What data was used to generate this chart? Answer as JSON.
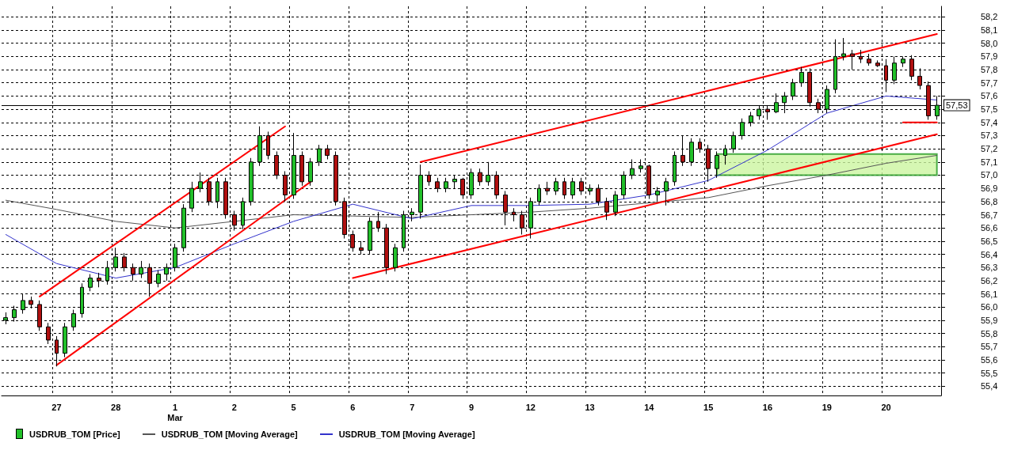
{
  "chart_data": {
    "type": "candlestick",
    "categories": [
      null,
      null,
      null,
      null,
      null,
      null,
      "27",
      null,
      null,
      null,
      null,
      null,
      null,
      "28",
      null,
      null,
      null,
      null,
      null,
      null,
      "1\nMar",
      null,
      null,
      null,
      null,
      null,
      null,
      "2",
      null,
      null,
      null,
      null,
      null,
      null,
      "5",
      null,
      null,
      null,
      null,
      null,
      null,
      "6",
      null,
      null,
      null,
      null,
      null,
      null,
      "7",
      null,
      null,
      null,
      null,
      null,
      null,
      "9",
      null,
      null,
      null,
      null,
      null,
      null,
      "12",
      null,
      null,
      null,
      null,
      null,
      null,
      "13",
      null,
      null,
      null,
      null,
      null,
      null,
      "14",
      null,
      null,
      null,
      null,
      null,
      null,
      "15",
      null,
      null,
      null,
      null,
      null,
      null,
      "16",
      null,
      null,
      null,
      null,
      null,
      null,
      "19",
      null,
      null,
      null,
      null,
      null,
      null,
      "20",
      null,
      null,
      null,
      null,
      null,
      null
    ],
    "series": [
      {
        "name": "USDRUB_TOM [Price]",
        "color": "#22c02a",
        "colors": [
          "#22c02a",
          "#22c02a",
          "#22c02a",
          "#b01010",
          "#b01010",
          "#b01010",
          "#b01010",
          "#22c02a",
          "#22c02a",
          "#22c02a",
          "#22c02a",
          "#b01010",
          "#22c02a",
          "#22c02a",
          "#b01010",
          "#b01010",
          "#22c02a",
          "#b01010",
          "#22c02a",
          "#22c02a",
          "#22c02a",
          "#22c02a",
          "#22c02a",
          "#22c02a",
          "#b01010",
          "#22c02a",
          "#b01010",
          "#b01010",
          "#22c02a",
          "#22c02a",
          "#22c02a",
          "#b01010",
          "#b01010",
          "#b01010",
          "#22c02a",
          "#b01010",
          "#22c02a",
          "#22c02a",
          "#b01010",
          "#b01010",
          "#b01010",
          "#b01010",
          "#b01010",
          "#22c02a",
          "#b01010",
          "#b01010",
          "#22c02a",
          "#22c02a",
          "#22c02a",
          "#22c02a",
          "#b01010",
          "#b01010",
          "#22c02a",
          "#22c02a",
          "#b01010",
          "#22c02a",
          "#b01010",
          "#22c02a",
          "#b01010",
          "#b01010",
          "#b01010",
          "#b01010",
          "#22c02a",
          "#22c02a",
          "#b01010",
          "#22c02a",
          "#b01010",
          "#22c02a",
          "#b01010",
          "#22c02a",
          "#b01010",
          "#b01010",
          "#22c02a",
          "#22c02a",
          "#22c02a",
          "#22c02a",
          "#b01010",
          "#22c02a",
          "#22c02a",
          "#22c02a",
          "#b01010",
          "#22c02a",
          "#b01010",
          "#b01010",
          "#22c02a",
          "#22c02a",
          "#22c02a",
          "#22c02a",
          "#22c02a",
          "#22c02a",
          "#b01010",
          "#22c02a",
          "#22c02a",
          "#22c02a",
          "#22c02a",
          "#b01010",
          "#b01010",
          "#22c02a",
          "#22c02a",
          "#22c02a",
          "#b01010",
          "#b01010",
          "#b01010",
          "#b01010",
          "#b01010",
          "#22c02a",
          "#22c02a",
          "#b01010",
          "#b01010",
          "#b01010",
          "#22c02a"
        ],
        "ohlc": [
          [
            55.9,
            55.96,
            55.87,
            55.92
          ],
          [
            55.92,
            56.01,
            55.89,
            55.98
          ],
          [
            55.98,
            56.1,
            55.95,
            56.05
          ],
          [
            56.05,
            56.08,
            55.99,
            56.02
          ],
          [
            56.02,
            56.05,
            55.82,
            55.85
          ],
          [
            55.85,
            55.88,
            55.72,
            55.75
          ],
          [
            55.75,
            55.78,
            55.55,
            55.65
          ],
          [
            55.65,
            55.88,
            55.62,
            55.85
          ],
          [
            55.85,
            55.98,
            55.82,
            55.95
          ],
          [
            55.95,
            56.18,
            55.92,
            56.15
          ],
          [
            56.15,
            56.25,
            56.12,
            56.22
          ],
          [
            56.22,
            56.26,
            56.15,
            56.2
          ],
          [
            56.2,
            56.35,
            56.17,
            56.3
          ],
          [
            56.3,
            56.45,
            56.27,
            56.38
          ],
          [
            56.38,
            56.41,
            56.27,
            56.3
          ],
          [
            56.3,
            56.33,
            56.2,
            56.25
          ],
          [
            56.25,
            56.35,
            56.22,
            56.3
          ],
          [
            56.3,
            56.33,
            56.08,
            56.18
          ],
          [
            56.18,
            56.28,
            56.15,
            56.25
          ],
          [
            56.25,
            56.33,
            56.2,
            56.3
          ],
          [
            56.3,
            56.48,
            56.27,
            56.45
          ],
          [
            56.45,
            56.78,
            56.42,
            56.75
          ],
          [
            56.75,
            56.95,
            56.72,
            56.9
          ],
          [
            56.9,
            57.02,
            56.87,
            56.95
          ],
          [
            56.95,
            56.98,
            56.77,
            56.8
          ],
          [
            56.8,
            56.98,
            56.75,
            56.95
          ],
          [
            56.95,
            56.98,
            56.67,
            56.7
          ],
          [
            56.7,
            56.73,
            56.58,
            56.62
          ],
          [
            56.62,
            56.83,
            56.59,
            56.8
          ],
          [
            56.8,
            57.13,
            56.77,
            57.1
          ],
          [
            57.1,
            57.37,
            57.07,
            57.3
          ],
          [
            57.3,
            57.33,
            57.12,
            57.15
          ],
          [
            57.15,
            57.18,
            56.97,
            57.0
          ],
          [
            57.0,
            57.03,
            56.8,
            56.85
          ],
          [
            56.85,
            57.32,
            56.82,
            57.15
          ],
          [
            57.15,
            57.18,
            56.92,
            56.95
          ],
          [
            56.95,
            57.13,
            56.92,
            57.1
          ],
          [
            57.1,
            57.23,
            57.07,
            57.2
          ],
          [
            57.2,
            57.23,
            57.12,
            57.15
          ],
          [
            57.15,
            57.18,
            56.77,
            56.8
          ],
          [
            56.8,
            56.83,
            56.52,
            56.55
          ],
          [
            56.55,
            56.58,
            56.42,
            56.45
          ],
          [
            56.45,
            56.5,
            56.4,
            56.43
          ],
          [
            56.43,
            56.68,
            56.4,
            56.65
          ],
          [
            56.65,
            56.72,
            56.57,
            56.6
          ],
          [
            56.6,
            56.63,
            56.25,
            56.3
          ],
          [
            56.3,
            56.48,
            56.27,
            56.45
          ],
          [
            56.45,
            56.73,
            56.42,
            56.7
          ],
          [
            56.7,
            56.75,
            56.65,
            56.72
          ],
          [
            56.72,
            57.08,
            56.67,
            57.0
          ],
          [
            57.0,
            57.03,
            56.92,
            56.95
          ],
          [
            56.95,
            56.98,
            56.87,
            56.9
          ],
          [
            56.9,
            56.98,
            56.87,
            56.95
          ],
          [
            56.95,
            57.0,
            56.9,
            56.97
          ],
          [
            56.97,
            56.98,
            56.82,
            56.85
          ],
          [
            56.85,
            57.05,
            56.82,
            57.02
          ],
          [
            57.02,
            57.05,
            56.92,
            56.95
          ],
          [
            56.95,
            57.1,
            56.92,
            57.0
          ],
          [
            57.0,
            57.03,
            56.82,
            56.85
          ],
          [
            56.85,
            56.88,
            56.62,
            56.72
          ],
          [
            56.72,
            56.75,
            56.65,
            56.7
          ],
          [
            56.7,
            56.73,
            56.55,
            56.6
          ],
          [
            56.6,
            56.83,
            56.52,
            56.8
          ],
          [
            56.8,
            56.93,
            56.77,
            56.9
          ],
          [
            56.9,
            56.95,
            56.85,
            56.88
          ],
          [
            56.88,
            56.98,
            56.85,
            56.95
          ],
          [
            56.95,
            56.98,
            56.82,
            56.85
          ],
          [
            56.85,
            56.98,
            56.82,
            56.95
          ],
          [
            56.95,
            56.98,
            56.85,
            56.88
          ],
          [
            56.88,
            56.93,
            56.85,
            56.9
          ],
          [
            56.9,
            56.93,
            56.77,
            56.8
          ],
          [
            56.8,
            56.83,
            56.66,
            56.72
          ],
          [
            56.72,
            56.88,
            56.69,
            56.85
          ],
          [
            56.85,
            57.03,
            56.82,
            57.0
          ],
          [
            57.0,
            57.12,
            56.97,
            57.05
          ],
          [
            57.05,
            57.12,
            57.02,
            57.07
          ],
          [
            57.07,
            57.08,
            56.82,
            56.85
          ],
          [
            56.85,
            56.91,
            56.8,
            56.88
          ],
          [
            56.88,
            56.98,
            56.77,
            56.95
          ],
          [
            56.95,
            57.18,
            56.92,
            57.15
          ],
          [
            57.15,
            57.3,
            57.07,
            57.1
          ],
          [
            57.1,
            57.28,
            57.07,
            57.25
          ],
          [
            57.25,
            57.28,
            57.17,
            57.2
          ],
          [
            57.2,
            57.23,
            56.95,
            57.05
          ],
          [
            57.05,
            57.18,
            56.98,
            57.15
          ],
          [
            57.15,
            57.23,
            57.08,
            57.2
          ],
          [
            57.2,
            57.33,
            57.17,
            57.3
          ],
          [
            57.3,
            57.43,
            57.27,
            57.4
          ],
          [
            57.4,
            57.48,
            57.37,
            57.45
          ],
          [
            57.45,
            57.53,
            57.42,
            57.5
          ],
          [
            57.5,
            57.53,
            57.42,
            57.48
          ],
          [
            57.48,
            57.62,
            57.47,
            57.55
          ],
          [
            57.55,
            57.63,
            57.47,
            57.6
          ],
          [
            57.6,
            57.73,
            57.57,
            57.7
          ],
          [
            57.7,
            57.82,
            57.67,
            57.78
          ],
          [
            57.78,
            57.81,
            57.52,
            57.55
          ],
          [
            57.55,
            57.58,
            57.47,
            57.5
          ],
          [
            57.5,
            57.68,
            57.47,
            57.65
          ],
          [
            57.65,
            58.03,
            57.62,
            57.9
          ],
          [
            57.9,
            58.04,
            57.87,
            57.92
          ],
          [
            57.92,
            57.95,
            57.8,
            57.9
          ],
          [
            57.9,
            57.95,
            57.85,
            57.88
          ],
          [
            57.88,
            57.92,
            57.83,
            57.85
          ],
          [
            57.85,
            57.87,
            57.82,
            57.83
          ],
          [
            57.83,
            57.88,
            57.63,
            57.72
          ],
          [
            57.72,
            57.9,
            57.69,
            57.85
          ],
          [
            57.85,
            57.9,
            57.82,
            57.88
          ],
          [
            57.88,
            57.91,
            57.72,
            57.75
          ],
          [
            57.75,
            57.81,
            57.65,
            57.68
          ],
          [
            57.68,
            57.71,
            57.42,
            57.45
          ],
          [
            57.45,
            57.6,
            57.42,
            57.53
          ]
        ]
      },
      {
        "name": "USDRUB_TOM [Moving Average]",
        "type": "line",
        "color": "#555555",
        "values": [
          56.81,
          null,
          null,
          null,
          null,
          null,
          56.74,
          null,
          null,
          null,
          null,
          null,
          null,
          56.65,
          null,
          null,
          null,
          null,
          null,
          null,
          56.6,
          null,
          null,
          null,
          null,
          null,
          null,
          56.65,
          null,
          null,
          null,
          null,
          null,
          null,
          56.7,
          null,
          null,
          null,
          null,
          null,
          null,
          56.69,
          null,
          null,
          null,
          null,
          null,
          null,
          56.68,
          null,
          null,
          null,
          null,
          null,
          null,
          56.7,
          null,
          null,
          null,
          null,
          null,
          null,
          56.72,
          null,
          null,
          null,
          null,
          null,
          null,
          56.75,
          null,
          null,
          null,
          null,
          null,
          null,
          56.79,
          null,
          null,
          null,
          null,
          null,
          null,
          56.83,
          null,
          null,
          null,
          null,
          null,
          null,
          56.92,
          null,
          null,
          null,
          null,
          null,
          null,
          57.0,
          null,
          null,
          null,
          null,
          null,
          null,
          57.09,
          null,
          null,
          null,
          null,
          null,
          57.15
        ]
      },
      {
        "name": "USDRUB_TOM [Moving Average]",
        "type": "line",
        "color": "#3333cc",
        "values": [
          56.55,
          null,
          null,
          null,
          null,
          null,
          56.33,
          null,
          null,
          null,
          null,
          null,
          null,
          56.22,
          null,
          null,
          null,
          null,
          null,
          null,
          56.3,
          null,
          null,
          null,
          null,
          null,
          null,
          56.48,
          null,
          null,
          null,
          null,
          null,
          null,
          56.65,
          null,
          null,
          null,
          null,
          null,
          null,
          56.78,
          null,
          null,
          null,
          null,
          null,
          null,
          56.67,
          null,
          null,
          null,
          null,
          null,
          null,
          56.77,
          null,
          null,
          null,
          null,
          null,
          null,
          56.77,
          null,
          null,
          null,
          null,
          null,
          null,
          56.78,
          null,
          null,
          null,
          null,
          null,
          null,
          56.85,
          null,
          null,
          null,
          null,
          null,
          null,
          56.96,
          null,
          null,
          null,
          null,
          null,
          null,
          57.19,
          null,
          null,
          null,
          null,
          null,
          null,
          57.47,
          null,
          null,
          null,
          null,
          null,
          null,
          57.6,
          null,
          null,
          null,
          null,
          null,
          57.57
        ]
      },
      {
        "type": "line",
        "color": "#ff0000",
        "values": [
          null,
          null,
          null,
          null,
          56.08,
          null,
          null,
          null,
          null,
          null,
          null,
          null,
          null,
          null,
          null,
          null,
          null,
          null,
          null,
          null,
          null,
          null,
          null,
          null,
          null,
          null,
          null,
          null,
          null,
          null,
          null,
          null,
          null,
          57.37,
          null,
          null,
          null,
          null,
          null,
          null,
          null,
          null,
          null,
          null,
          null,
          null,
          null,
          null,
          null,
          null,
          null,
          null,
          null,
          null,
          null,
          null,
          null,
          null,
          null,
          null,
          null,
          null,
          null,
          null,
          null,
          null,
          null,
          null,
          null,
          null,
          null,
          null,
          null,
          null,
          null,
          null,
          null,
          null,
          null,
          null,
          null,
          null,
          null,
          null,
          null,
          null,
          null,
          null,
          null,
          null,
          null,
          null,
          null,
          null,
          null,
          null,
          null,
          null,
          null,
          null,
          null,
          null,
          null,
          null,
          null,
          null,
          null,
          null,
          null,
          null,
          null
        ]
      },
      {
        "type": "line",
        "color": "#ff0000",
        "values": [
          null,
          null,
          null,
          null,
          null,
          null,
          55.56,
          null,
          null,
          null,
          null,
          null,
          null,
          null,
          null,
          null,
          null,
          null,
          null,
          null,
          null,
          null,
          null,
          null,
          null,
          null,
          null,
          null,
          null,
          null,
          null,
          null,
          null,
          null,
          null,
          null,
          56.95,
          null,
          null,
          null,
          null,
          null,
          null,
          null,
          null,
          null,
          null,
          null,
          null,
          null,
          null,
          null,
          null,
          null,
          null,
          null,
          null,
          null,
          null,
          null,
          null,
          null,
          null,
          null,
          null,
          null,
          null,
          null,
          null,
          null,
          null,
          null,
          null,
          null,
          null,
          null,
          null,
          null,
          null,
          null,
          null,
          null,
          null,
          null,
          null,
          null,
          null,
          null,
          null,
          null,
          null,
          null,
          null,
          null,
          null,
          null,
          null,
          null,
          null,
          null,
          null,
          null,
          null,
          null,
          null,
          null,
          null,
          null,
          null,
          null,
          null
        ]
      },
      {
        "type": "line",
        "color": "#ff0000",
        "values": [
          null,
          null,
          null,
          null,
          null,
          null,
          null,
          null,
          null,
          null,
          null,
          null,
          null,
          null,
          null,
          null,
          null,
          null,
          null,
          null,
          null,
          null,
          null,
          null,
          null,
          null,
          null,
          null,
          null,
          null,
          null,
          null,
          null,
          null,
          null,
          null,
          null,
          null,
          null,
          null,
          null,
          null,
          null,
          null,
          null,
          null,
          null,
          null,
          null,
          57.1,
          null,
          null,
          null,
          null,
          null,
          null,
          null,
          null,
          null,
          null,
          null,
          null,
          null,
          null,
          null,
          null,
          null,
          null,
          null,
          null,
          null,
          null,
          null,
          null,
          null,
          null,
          null,
          null,
          null,
          null,
          null,
          null,
          null,
          null,
          null,
          null,
          null,
          null,
          null,
          null,
          null,
          null,
          null,
          null,
          null,
          null,
          null,
          null,
          null,
          null,
          null,
          null,
          null,
          null,
          null,
          null,
          null,
          null,
          null,
          null,
          58.07
        ]
      },
      {
        "type": "line",
        "color": "#ff0000",
        "values": [
          null,
          null,
          null,
          null,
          null,
          null,
          null,
          null,
          null,
          null,
          null,
          null,
          null,
          null,
          null,
          null,
          null,
          null,
          null,
          null,
          null,
          null,
          null,
          null,
          null,
          null,
          null,
          null,
          null,
          null,
          null,
          null,
          null,
          null,
          null,
          null,
          null,
          null,
          null,
          null,
          null,
          56.22,
          null,
          null,
          null,
          null,
          null,
          null,
          null,
          null,
          null,
          null,
          null,
          null,
          null,
          null,
          null,
          null,
          null,
          null,
          null,
          null,
          null,
          null,
          null,
          null,
          null,
          null,
          null,
          null,
          null,
          null,
          null,
          null,
          null,
          null,
          null,
          null,
          null,
          null,
          null,
          null,
          null,
          null,
          null,
          null,
          null,
          null,
          null,
          null,
          null,
          null,
          null,
          null,
          null,
          null,
          null,
          null,
          null,
          null,
          null,
          null,
          null,
          null,
          null,
          null,
          null,
          null,
          null,
          null,
          57.31
        ]
      },
      {
        "type": "line",
        "color": "#ff0000",
        "values": [
          null,
          null,
          null,
          null,
          null,
          null,
          null,
          null,
          null,
          null,
          null,
          null,
          null,
          null,
          null,
          null,
          null,
          null,
          null,
          null,
          null,
          null,
          null,
          null,
          null,
          null,
          null,
          null,
          null,
          null,
          null,
          null,
          null,
          null,
          null,
          null,
          null,
          null,
          null,
          null,
          null,
          null,
          null,
          null,
          null,
          null,
          null,
          null,
          null,
          null,
          null,
          null,
          null,
          null,
          null,
          null,
          null,
          null,
          null,
          null,
          null,
          null,
          null,
          null,
          null,
          null,
          null,
          null,
          null,
          null,
          null,
          null,
          null,
          null,
          null,
          null,
          null,
          null,
          null,
          null,
          null,
          null,
          null,
          null,
          null,
          null,
          null,
          null,
          null,
          null,
          null,
          null,
          null,
          null,
          null,
          null,
          null,
          null,
          null,
          null,
          null,
          null,
          null,
          null,
          null,
          null,
          57.4,
          null,
          null,
          null,
          57.4
        ]
      }
    ],
    "ylim": [
      55.33,
      58.28
    ],
    "yticks": [
      {
        "value": 55.4,
        "label": "55,4"
      },
      {
        "value": 55.5,
        "label": "55,5"
      },
      {
        "value": 55.6,
        "label": "55,6"
      },
      {
        "value": 55.7,
        "label": "55,7"
      },
      {
        "value": 55.8,
        "label": "55,8"
      },
      {
        "value": 55.9,
        "label": "55,9"
      },
      {
        "value": 56.0,
        "label": "56,0"
      },
      {
        "value": 56.1,
        "label": "56,1"
      },
      {
        "value": 56.2,
        "label": "56,2"
      },
      {
        "value": 56.3,
        "label": "56,3"
      },
      {
        "value": 56.4,
        "label": "56,4"
      },
      {
        "value": 56.5,
        "label": "56,5"
      },
      {
        "value": 56.6,
        "label": "56,6"
      },
      {
        "value": 56.7,
        "label": "56,7"
      },
      {
        "value": 56.8,
        "label": "56,8"
      },
      {
        "value": 56.9,
        "label": "56,9"
      },
      {
        "value": 57.0,
        "label": "57,0"
      },
      {
        "value": 57.1,
        "label": "57,1"
      },
      {
        "value": 57.2,
        "label": "57,2"
      },
      {
        "value": 57.3,
        "label": "57,3"
      },
      {
        "value": 57.4,
        "label": "57,4"
      },
      {
        "value": 57.5,
        "label": "57,5"
      },
      {
        "value": 57.6,
        "label": "57,6"
      },
      {
        "value": 57.7,
        "label": "57,7"
      },
      {
        "value": 57.8,
        "label": "57,8"
      },
      {
        "value": 57.9,
        "label": "57,9"
      },
      {
        "value": 58.0,
        "label": "58,0"
      },
      {
        "value": 58.1,
        "label": "58,1"
      },
      {
        "value": 58.2,
        "label": "58,2"
      }
    ],
    "ref_lines": [
      {
        "axis": "y",
        "value": 57.53,
        "label": "57,53",
        "color": "#000000"
      }
    ],
    "bands": [
      {
        "axis": "y",
        "from": 57.0,
        "to": 57.16,
        "color": "#ccf5a0"
      }
    ],
    "grid": true,
    "marker": "none",
    "line_style": "solid",
    "legend": "bottom left"
  }
}
